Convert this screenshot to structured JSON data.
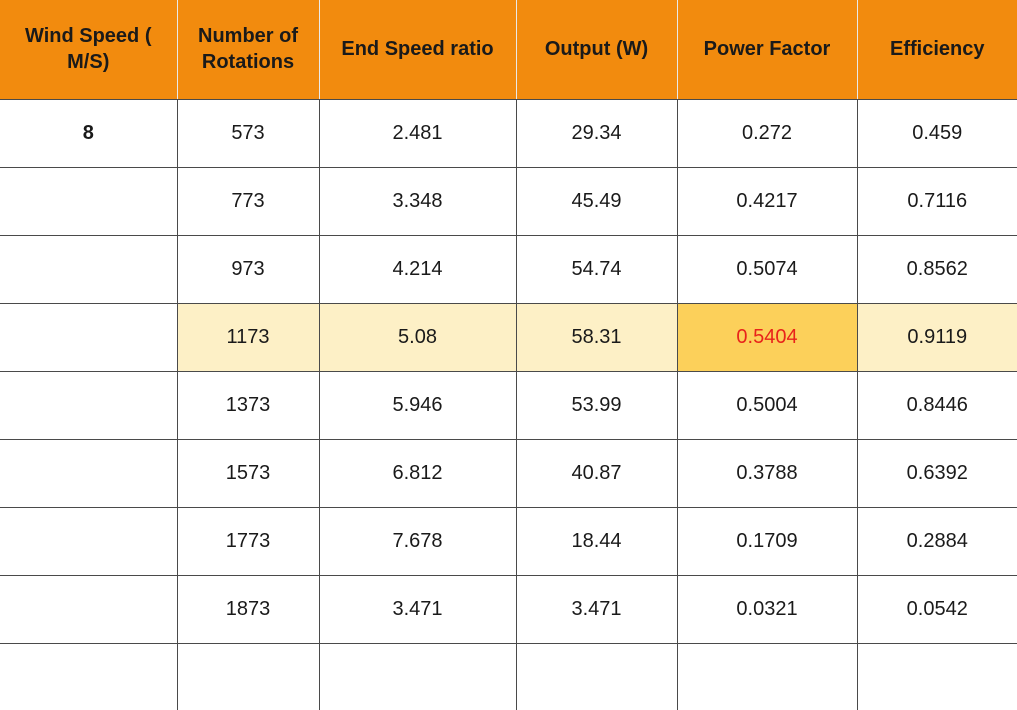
{
  "table": {
    "headers": [
      "Wind Speed ( M/S)",
      "Number of Rotations",
      "End Speed ratio",
      "Output (W)",
      "Power Factor",
      "Efficiency"
    ],
    "rows": [
      [
        "8",
        "573",
        "2.481",
        "29.34",
        "0.272",
        "0.459"
      ],
      [
        "",
        "773",
        "3.348",
        "45.49",
        "0.4217",
        "0.7116"
      ],
      [
        "",
        "973",
        "4.214",
        "54.74",
        "0.5074",
        "0.8562"
      ],
      [
        "",
        "1173",
        "5.08",
        "58.31",
        "0.5404",
        "0.9119"
      ],
      [
        "",
        "1373",
        "5.946",
        "53.99",
        "0.5004",
        "0.8446"
      ],
      [
        "",
        "1573",
        "6.812",
        "40.87",
        "0.3788",
        "0.6392"
      ],
      [
        "",
        "1773",
        "7.678",
        "18.44",
        "0.1709",
        "0.2884"
      ],
      [
        "",
        "1873",
        "3.471",
        "3.471",
        "0.0321",
        "0.0542"
      ],
      [
        "",
        "",
        "",
        "",
        "",
        ""
      ]
    ],
    "highlight_row_index": 3,
    "highlight_cell_column": 4
  },
  "colors": {
    "header_bg": "#f28b0e",
    "highlight_row_bg": "#fdf0c6",
    "highlight_cell_bg": "#fcd05a",
    "highlight_cell_text": "#e8231b",
    "grid_line": "#4a4a4a"
  }
}
